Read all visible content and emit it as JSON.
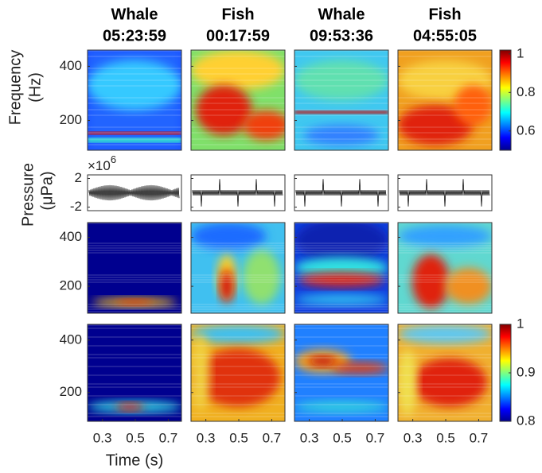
{
  "columns": [
    {
      "species": "Whale",
      "time": "05:23:59"
    },
    {
      "species": "Fish",
      "time": "00:17:59"
    },
    {
      "species": "Whale",
      "time": "09:53:36"
    },
    {
      "species": "Fish",
      "time": "04:55:05"
    }
  ],
  "frequency_label": [
    "Frequency",
    "(Hz)"
  ],
  "pressure_label": [
    "Pressure",
    "(μPa)"
  ],
  "pressure_exponent": {
    "base": "×10",
    "power": "6"
  },
  "frequency_axis": {
    "lim": [
      90,
      460
    ],
    "ticks": [
      200,
      400
    ]
  },
  "pressure_axis": {
    "lim": [
      -2.5,
      2.5
    ],
    "ticks": [
      2,
      -2
    ]
  },
  "time_axis": {
    "label": "Time (s)",
    "lim": [
      0.21,
      0.78
    ],
    "ticks": [
      0.3,
      0.5,
      0.7
    ]
  },
  "colorbar_top": {
    "lim": [
      0.5,
      1.02
    ],
    "ticks": [
      1,
      0.8,
      0.6
    ]
  },
  "colorbar_bottom": {
    "lim": [
      0.8,
      1
    ],
    "ticks": [
      1,
      0.9,
      0.8
    ]
  }
}
